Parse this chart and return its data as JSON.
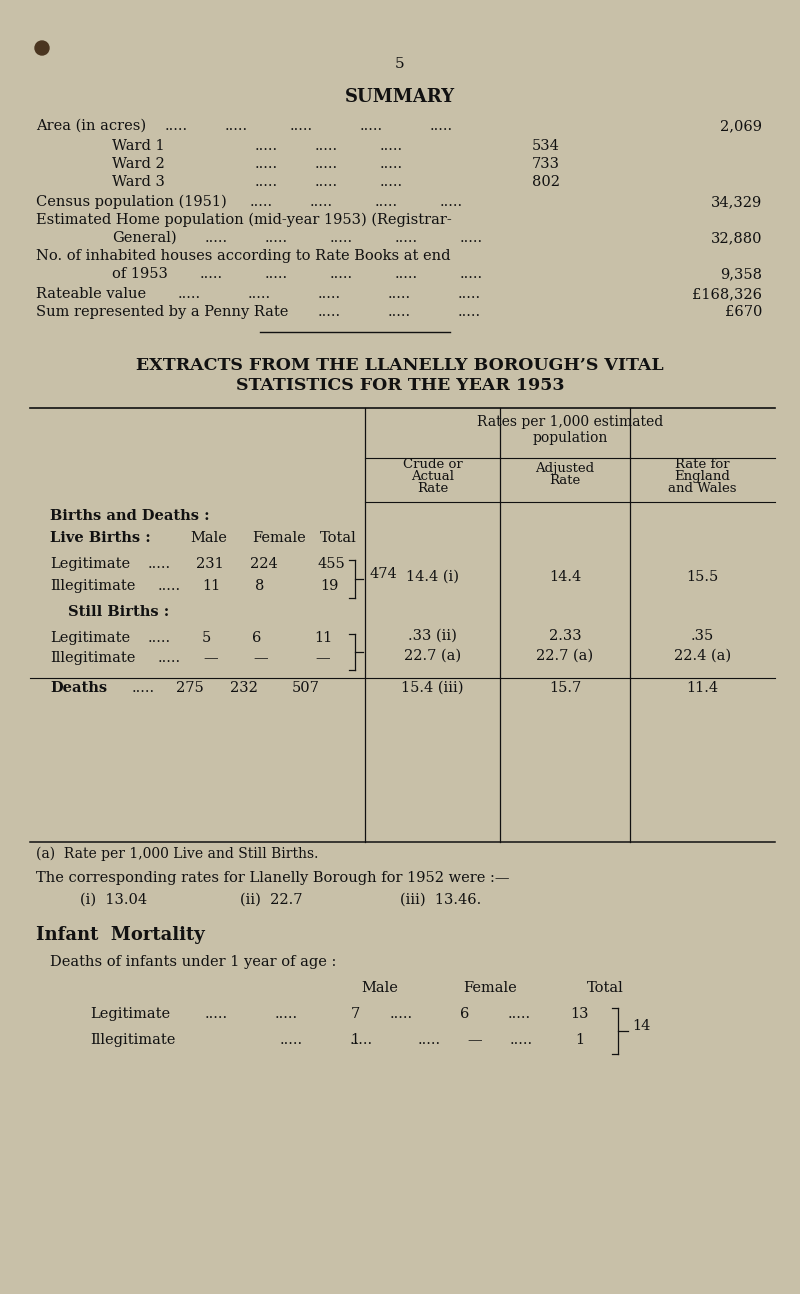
{
  "bg_color": "#c8c0a8",
  "text_color": "#111111",
  "page_num": "5",
  "fig_w": 8.0,
  "fig_h": 12.94,
  "dpi": 100,
  "summary_title": "SUMMARY",
  "extracts_line1": "EXTRACTS FROM THE LLANELLY BOROUGH’S VITAL",
  "extracts_line2": "STATISTICS FOR THE YEAR 1953",
  "col_hdr_main1": "Rates per 1,000 estimated",
  "col_hdr_main2": "population",
  "col_hdr1_l1": "Crude or",
  "col_hdr1_l2": "Actual",
  "col_hdr1_l3": "Rate",
  "col_hdr2_l1": "Adjusted",
  "col_hdr2_l2": "Rate",
  "col_hdr3_l1": "Rate for",
  "col_hdr3_l2": "England",
  "col_hdr3_l3": "and Wales",
  "births_deaths_hdr": "Births and Deaths :",
  "live_births_hdr": "Live Births :",
  "live_male_hdr": "Male",
  "live_female_hdr": "Female",
  "live_total_hdr": "Total",
  "legit_live_label": "Legitimate",
  "legit_live_dots": ".....",
  "legit_live_male": "231",
  "legit_live_female": "224",
  "legit_live_total": "455",
  "illegit_live_label": "Illegitimate",
  "illegit_live_dots": ".....",
  "illegit_live_male": "11",
  "illegit_live_female": "8",
  "illegit_live_total": "19",
  "brace1_num": "474",
  "live_crude": "14.4 (i)",
  "live_adj": "14.4",
  "live_eng": "15.5",
  "still_births_hdr": "Still Births :",
  "legit_still_label": "Legitimate",
  "legit_still_dots": ".....",
  "legit_still_male": "5",
  "legit_still_female": "6",
  "legit_still_total": "11",
  "illegit_still_label": "Illegitimate",
  "illegit_still_dots": ".....",
  "illegit_still_male": "—",
  "illegit_still_female": "—",
  "illegit_still_total": "—",
  "still_crude1": ".33 (ii)",
  "still_crude2": "22.7 (a)",
  "still_adj1": "2.33",
  "still_adj2": "22.7 (a)",
  "still_eng1": ".35",
  "still_eng2": "22.4 (a)",
  "deaths_label": "Deaths",
  "deaths_dots": ".....",
  "deaths_male": "275",
  "deaths_female": "232",
  "deaths_total": "507",
  "deaths_crude": "15.4 (iii)",
  "deaths_adj": "15.7",
  "deaths_eng": "11.4",
  "fn_a": "(a)  Rate per 1,000 Live and Still Births.",
  "fn_corr": "The corresponding rates for Llanelly Borough for 1952 were :—",
  "fn_i": "(i)  13.04",
  "fn_ii": "(ii)  22.7",
  "fn_iii": "(iii)  13.46.",
  "infant_title": "Infant  Mortality",
  "infant_sub": "Deaths of infants under 1 year of age :",
  "infant_male_hdr": "Male",
  "infant_female_hdr": "Female",
  "infant_total_hdr": "Total",
  "inf_legit_label": "Legitimate",
  "inf_legit_dots1": ".....",
  "inf_legit_dots2": ".....",
  "inf_legit_dots3": ".....",
  "inf_legit_male": "7",
  "inf_legit_dots4": ".....",
  "inf_legit_female": "6",
  "inf_legit_dots5": ".....",
  "inf_legit_total": "13",
  "inf_illegit_label": "Illegitimate",
  "inf_illegit_dots1": ".....",
  "inf_illegit_dots2": ".....",
  "inf_illegit_male": "1",
  "inf_illegit_dots3": ".....",
  "inf_illegit_female": "—",
  "inf_illegit_dots4": ".....",
  "inf_illegit_total": "1",
  "infant_brace_num": "14",
  "area_label": "Area (in acres)",
  "area_dots": ".....",
  "area_value": "2,069",
  "ward1_label": "Ward 1",
  "ward1_dots": ".....",
  "ward1_value": "534",
  "ward2_label": "Ward 2",
  "ward2_dots": ".....",
  "ward2_value": "733",
  "ward3_label": "Ward 3",
  "ward3_dots": ".....",
  "ward3_value": "802",
  "census_label": "Census population (1951)",
  "census_dots": ".....",
  "census_value": "34,329",
  "est_label1": "Estimated Home population (mid-year 1953) (Registrar-",
  "est_label2": "General)",
  "est_dots": ".....",
  "est_value": "32,880",
  "houses_label1": "No. of inhabited houses according to Rate Books at end",
  "houses_label2": "of 1953",
  "houses_dots": ".....",
  "houses_value": "9,358",
  "rate_label": "Rateable value",
  "rate_dots": ".....",
  "rate_value": "£168,326",
  "penny_label": "Sum represented by a Penny Rate",
  "penny_dots": ".....",
  "penny_value": "£670"
}
